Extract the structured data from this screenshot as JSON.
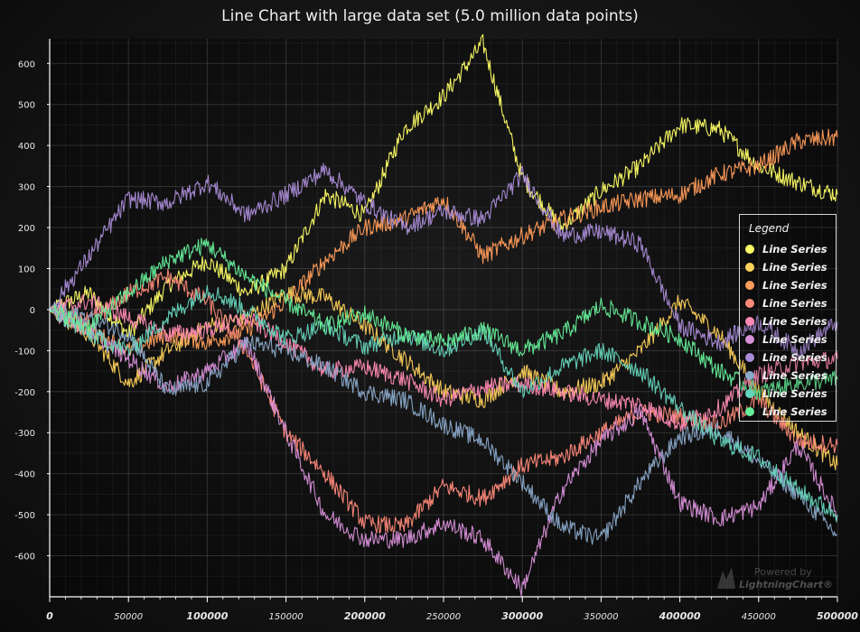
{
  "chart_data": {
    "type": "line",
    "title": "Line Chart with large data set (5.0 million data points)",
    "xlim": [
      0,
      500000
    ],
    "ylim": [
      -700,
      660
    ],
    "x_ticks": [
      {
        "value": 0,
        "label": "0",
        "major": true
      },
      {
        "value": 50000,
        "label": "50000",
        "major": false
      },
      {
        "value": 100000,
        "label": "100000",
        "major": true
      },
      {
        "value": 150000,
        "label": "150000",
        "major": false
      },
      {
        "value": 200000,
        "label": "200000",
        "major": true
      },
      {
        "value": 250000,
        "label": "250000",
        "major": false
      },
      {
        "value": 300000,
        "label": "300000",
        "major": true
      },
      {
        "value": 350000,
        "label": "350000",
        "major": false
      },
      {
        "value": 400000,
        "label": "400000",
        "major": true
      },
      {
        "value": 450000,
        "label": "450000",
        "major": false
      },
      {
        "value": 500000,
        "label": "500000",
        "major": true
      }
    ],
    "y_ticks": [
      600,
      500,
      400,
      300,
      200,
      100,
      0,
      -100,
      -200,
      -300,
      -400,
      -500,
      -600
    ],
    "grid": true,
    "legend": {
      "title": "Legend",
      "position": "right"
    },
    "series": [
      {
        "name": "Line Series",
        "color": "#ffff66",
        "x": [
          0,
          25000,
          50000,
          75000,
          100000,
          125000,
          150000,
          175000,
          200000,
          225000,
          250000,
          275000,
          300000,
          325000,
          350000,
          375000,
          400000,
          425000,
          450000,
          475000,
          500000
        ],
        "values": [
          0,
          40,
          -60,
          60,
          120,
          40,
          100,
          280,
          230,
          440,
          520,
          650,
          320,
          200,
          290,
          350,
          450,
          440,
          350,
          310,
          280
        ]
      },
      {
        "name": "Line Series",
        "color": "#ffd25a",
        "x": [
          0,
          25000,
          50000,
          75000,
          100000,
          125000,
          150000,
          175000,
          200000,
          225000,
          250000,
          275000,
          300000,
          325000,
          350000,
          375000,
          400000,
          425000,
          450000,
          475000,
          500000
        ],
        "values": [
          0,
          -60,
          -180,
          -100,
          -40,
          -20,
          40,
          30,
          -40,
          -120,
          -200,
          -220,
          -150,
          -200,
          -180,
          -100,
          20,
          -60,
          -200,
          -300,
          -380
        ]
      },
      {
        "name": "Line Series",
        "color": "#ff9c5a",
        "x": [
          0,
          25000,
          50000,
          75000,
          100000,
          125000,
          150000,
          175000,
          200000,
          225000,
          250000,
          275000,
          300000,
          325000,
          350000,
          375000,
          400000,
          425000,
          450000,
          475000,
          500000
        ],
        "values": [
          0,
          -50,
          -100,
          -60,
          -80,
          -50,
          20,
          120,
          200,
          220,
          270,
          130,
          180,
          220,
          250,
          270,
          280,
          330,
          350,
          410,
          420
        ]
      },
      {
        "name": "Line Series",
        "color": "#ff8a7a",
        "x": [
          0,
          25000,
          50000,
          75000,
          100000,
          125000,
          150000,
          175000,
          200000,
          225000,
          250000,
          275000,
          300000,
          325000,
          350000,
          375000,
          400000,
          425000,
          450000,
          475000,
          500000
        ],
        "values": [
          0,
          -30,
          40,
          80,
          20,
          -100,
          -300,
          -400,
          -520,
          -530,
          -430,
          -460,
          -380,
          -360,
          -300,
          -250,
          -260,
          -280,
          -220,
          -320,
          -330
        ]
      },
      {
        "name": "Line Series",
        "color": "#ff8ab4",
        "x": [
          0,
          25000,
          50000,
          75000,
          100000,
          125000,
          150000,
          175000,
          200000,
          225000,
          250000,
          275000,
          300000,
          325000,
          350000,
          375000,
          400000,
          425000,
          450000,
          475000,
          500000
        ],
        "values": [
          0,
          20,
          -20,
          -60,
          -50,
          -20,
          -80,
          -150,
          -140,
          -170,
          -220,
          -190,
          -180,
          -200,
          -220,
          -230,
          -280,
          -240,
          -160,
          -130,
          -120
        ]
      },
      {
        "name": "Line Series",
        "color": "#d890d8",
        "x": [
          0,
          25000,
          50000,
          75000,
          100000,
          125000,
          150000,
          175000,
          200000,
          225000,
          250000,
          275000,
          300000,
          325000,
          350000,
          375000,
          400000,
          425000,
          450000,
          475000,
          500000
        ],
        "values": [
          0,
          -50,
          -120,
          -190,
          -150,
          -80,
          -300,
          -500,
          -560,
          -560,
          -520,
          -560,
          -680,
          -440,
          -320,
          -250,
          -470,
          -510,
          -480,
          -330,
          -500
        ]
      },
      {
        "name": "Line Series",
        "color": "#a98cd6",
        "x": [
          0,
          25000,
          50000,
          75000,
          100000,
          125000,
          150000,
          175000,
          200000,
          225000,
          250000,
          275000,
          300000,
          325000,
          350000,
          375000,
          400000,
          425000,
          450000,
          475000,
          500000
        ],
        "values": [
          0,
          130,
          270,
          260,
          310,
          230,
          280,
          340,
          260,
          200,
          240,
          220,
          330,
          180,
          190,
          160,
          -40,
          -80,
          -30,
          -100,
          -30
        ]
      },
      {
        "name": "Line Series",
        "color": "#8aa8c8",
        "x": [
          0,
          25000,
          50000,
          75000,
          100000,
          125000,
          150000,
          175000,
          200000,
          225000,
          250000,
          275000,
          300000,
          325000,
          350000,
          375000,
          400000,
          425000,
          450000,
          475000,
          500000
        ],
        "values": [
          0,
          -20,
          -60,
          -200,
          -180,
          -80,
          -100,
          -140,
          -200,
          -220,
          -280,
          -320,
          -420,
          -530,
          -560,
          -420,
          -310,
          -290,
          -370,
          -450,
          -550
        ]
      },
      {
        "name": "Line Series",
        "color": "#66d4bc",
        "x": [
          0,
          25000,
          50000,
          75000,
          100000,
          125000,
          150000,
          175000,
          200000,
          225000,
          250000,
          275000,
          300000,
          325000,
          350000,
          375000,
          400000,
          425000,
          450000,
          475000,
          500000
        ],
        "values": [
          0,
          -60,
          -100,
          -20,
          50,
          0,
          -70,
          -40,
          -90,
          -60,
          -100,
          -50,
          -200,
          -140,
          -100,
          -150,
          -240,
          -320,
          -360,
          -440,
          -500
        ]
      },
      {
        "name": "Line Series",
        "color": "#66ee9a",
        "x": [
          0,
          25000,
          50000,
          75000,
          100000,
          125000,
          150000,
          175000,
          200000,
          225000,
          250000,
          275000,
          300000,
          325000,
          350000,
          375000,
          400000,
          425000,
          450000,
          475000,
          500000
        ],
        "values": [
          0,
          -40,
          40,
          120,
          160,
          80,
          20,
          -40,
          -10,
          -60,
          -80,
          -50,
          -100,
          -60,
          10,
          -30,
          -70,
          -150,
          -200,
          -180,
          -170
        ]
      }
    ]
  },
  "watermark": {
    "line1": "Powered by",
    "brand": "LightningChart®"
  }
}
